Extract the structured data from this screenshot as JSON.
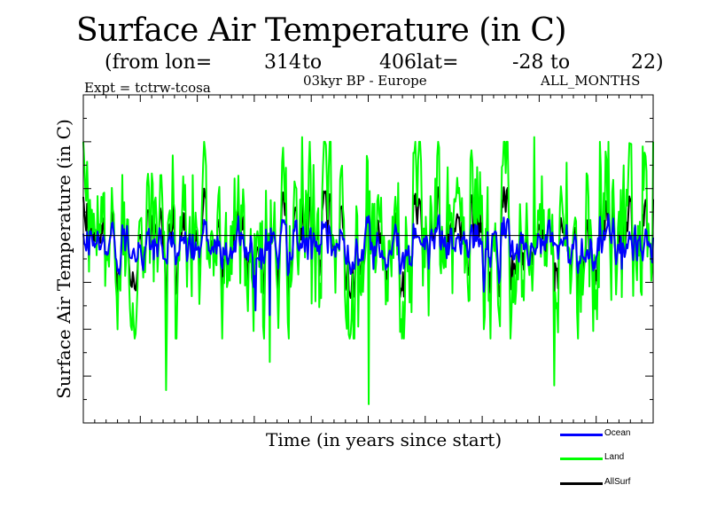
{
  "chart_data": {
    "type": "line",
    "title": "Surface Air Temperature (in C)",
    "subtitle": {
      "from_lon_label": "(from lon=",
      "lon_start": "314",
      "to_label_1": "to",
      "lon_end": "406",
      "lat_label": "lat=",
      "lat_start": "-28",
      "to_label_2": "to",
      "lat_end": "22)"
    },
    "expt_label": "Expt = tctrw-tcosa",
    "period_label": "03kyr BP - Europe",
    "months_label": "ALL_MONTHS",
    "xlabel": "Time (in years since start)",
    "ylabel": "Surface Air Temperature (in C)",
    "ylim": [
      -4,
      3
    ],
    "zero_line": 0,
    "n_points": 600,
    "series": [
      {
        "name": "Land",
        "color": "#00ff00",
        "description": "highly variable; mostly between -1.5 and 2, occasional extremes",
        "typical_range": [
          -1.5,
          2.0
        ],
        "spikes": [
          {
            "x": 87,
            "value": -3.3
          },
          {
            "x": 196,
            "value": -2.7
          },
          {
            "x": 300,
            "value": -3.6
          },
          {
            "x": 495,
            "value": -3.2
          },
          {
            "x": 230,
            "value": 2.1
          },
          {
            "x": 474,
            "value": 2.1
          },
          {
            "x": 588,
            "value": 1.9
          }
        ]
      },
      {
        "name": "Ocean",
        "color": "#0000ff",
        "description": "moderate variability near zero; mostly between -1 and 0.4",
        "typical_range": [
          -1.0,
          0.4
        ],
        "spikes": [
          {
            "x": 196,
            "value": -1.7
          },
          {
            "x": 181,
            "value": -1.6
          },
          {
            "x": 421,
            "value": -1.2
          }
        ]
      },
      {
        "name": "AllSurf",
        "color": "#000000",
        "description": "largely hidden beneath Ocean/Land; visible above zero at peaks",
        "typical_range": [
          -1.0,
          0.6
        ]
      }
    ],
    "legend": [
      "Ocean",
      "Land",
      "AllSurf"
    ],
    "legend_position": "bottom-right",
    "grid": false
  }
}
